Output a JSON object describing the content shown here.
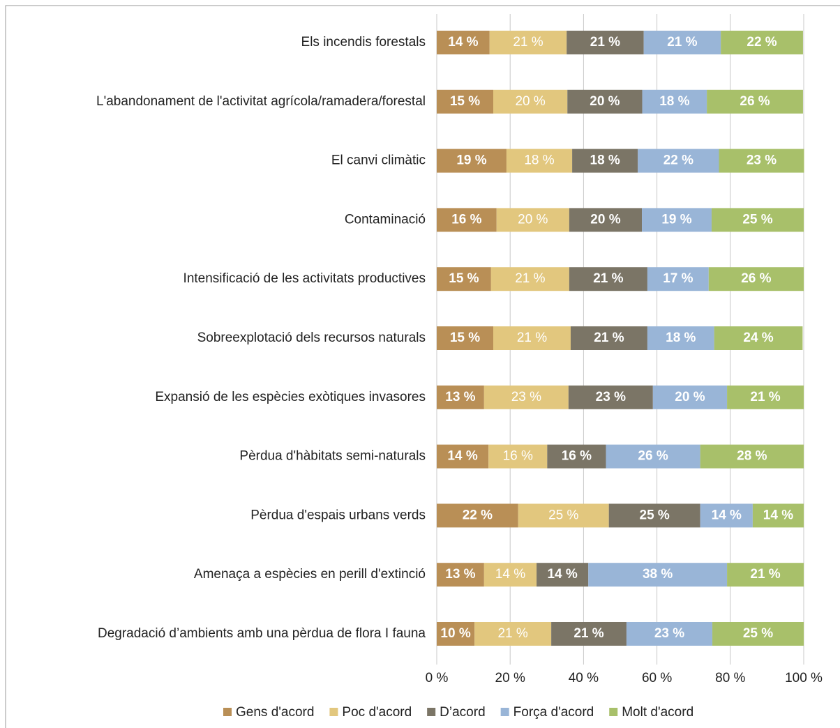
{
  "chart_data": {
    "type": "stacked_barh",
    "categories": [
      "Els incendis forestals",
      "L'abandonament de l'activitat agrícola/ramadera/forestal",
      "El canvi climàtic",
      "Contaminació",
      "Intensificació de les activitats productives ",
      "Sobreexplotació dels recursos naturals",
      "Expansió de les espècies exòtiques invasores",
      "Pèrdua d'hàbitats semi-naturals ",
      "Pèrdua d'espais urbans verds",
      "Amenaça a espècies en perill d'extinció",
      "Degradació d’ambients amb una pèrdua de flora I fauna"
    ],
    "series": [
      {
        "name": "Gens d'acord",
        "color": "#b98f56",
        "values": [
          14.4,
          15.4,
          19.0,
          16.3,
          14.8,
          15.4,
          12.9,
          14.1,
          22.2,
          12.9,
          10.3
        ],
        "value_labels": [
          "14 %",
          "15 %",
          "19 %",
          "16 %",
          "15 %",
          "15 %",
          "13 %",
          "14 %",
          "22 %",
          "13 %",
          "10 %"
        ]
      },
      {
        "name": "Poc d'acord",
        "color": "#e2c77e",
        "values": [
          21.0,
          20.2,
          17.9,
          19.8,
          21.3,
          21.1,
          23.0,
          16.0,
          24.7,
          14.3,
          20.9
        ],
        "value_labels": [
          "21 %",
          "20 %",
          "18 %",
          "20 %",
          "21 %",
          "21 %",
          "23 %",
          "16 %",
          "25 %",
          "14 %",
          "21 %"
        ]
      },
      {
        "name": "D’acord",
        "color": "#7b7566",
        "values": [
          21.0,
          20.4,
          17.9,
          19.8,
          21.3,
          20.9,
          23.0,
          16.0,
          24.9,
          14.1,
          20.5
        ],
        "value_labels": [
          "21 %",
          "20 %",
          "18 %",
          "20 %",
          "21 %",
          "21 %",
          "23 %",
          "16 %",
          "25 %",
          "14 %",
          "21 %"
        ]
      },
      {
        "name": "Força d'acord",
        "color": "#99b5d7",
        "values": [
          21.0,
          17.6,
          22.1,
          19.0,
          16.7,
          18.2,
          20.2,
          25.7,
          14.3,
          37.8,
          23.4
        ],
        "value_labels": [
          "21 %",
          "18 %",
          "22 %",
          "19 %",
          "17 %",
          "18 %",
          "20 %",
          "26 %",
          "14 %",
          "38 %",
          "23 %"
        ]
      },
      {
        "name": "Molt d'acord",
        "color": "#a8c06a",
        "values": [
          22.4,
          26.2,
          23.2,
          25.1,
          25.9,
          24.1,
          20.9,
          28.2,
          13.9,
          20.9,
          24.9
        ],
        "value_labels": [
          "22 %",
          "26 %",
          "23 %",
          "25 %",
          "26 %",
          "24 %",
          "21 %",
          "28 %",
          "14 %",
          "21 %",
          "25 %"
        ]
      }
    ],
    "xlim": [
      0,
      100
    ],
    "xticks": [
      {
        "value": 0,
        "label": "0 %"
      },
      {
        "value": 20,
        "label": "20  %"
      },
      {
        "value": 40,
        "label": "40  %"
      },
      {
        "value": 60,
        "label": "60  %"
      },
      {
        "value": 80,
        "label": "80 %"
      },
      {
        "value": 100,
        "label": "100 %"
      }
    ],
    "grid": true,
    "legend": "bottom"
  }
}
